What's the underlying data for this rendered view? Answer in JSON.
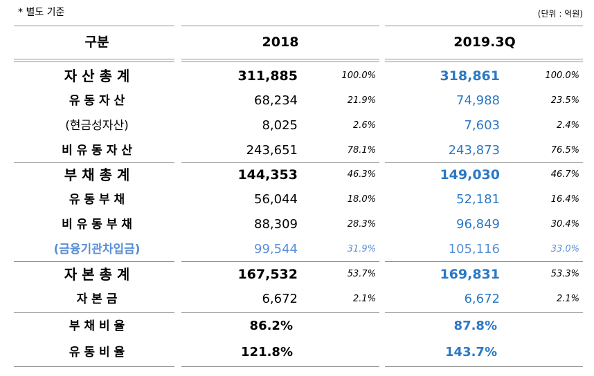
{
  "header": {
    "note": "* 별도 기준",
    "unit": "(단위 : 억원)"
  },
  "table": {
    "columns": [
      "구분",
      "2018",
      "2019.3Q"
    ],
    "rows": [
      [
        "자 산 총 계",
        "311,885",
        "100.0%",
        "318,861",
        "100.0%"
      ],
      [
        "유 동 자 산",
        "68,234",
        "21.9%",
        "74,988",
        "23.5%"
      ],
      [
        "(현금성자산)",
        "8,025",
        "2.6%",
        "7,603",
        "2.4%"
      ],
      [
        "비 유 동 자 산",
        "243,651",
        "78.1%",
        "243,873",
        "76.5%"
      ],
      [
        "부 채 총 계",
        "144,353",
        "46.3%",
        "149,030",
        "46.7%"
      ],
      [
        "유 동 부 채",
        "56,044",
        "18.0%",
        "52,181",
        "16.4%"
      ],
      [
        "비 유 동 부 채",
        "88,309",
        "28.3%",
        "96,849",
        "30.4%"
      ],
      [
        "(금융기관차입금)",
        "99,544",
        "31.9%",
        "105,116",
        "33.0%"
      ],
      [
        "자 본 총 계",
        "167,532",
        "53.7%",
        "169,831",
        "53.3%"
      ],
      [
        "자 본 금",
        "6,672",
        "2.1%",
        "6,672",
        "2.1%"
      ],
      [
        "부 채 비 율",
        "86.2%",
        "87.8%"
      ],
      [
        "유 동 비 율",
        "121.8%",
        "143.7%"
      ]
    ]
  }
}
